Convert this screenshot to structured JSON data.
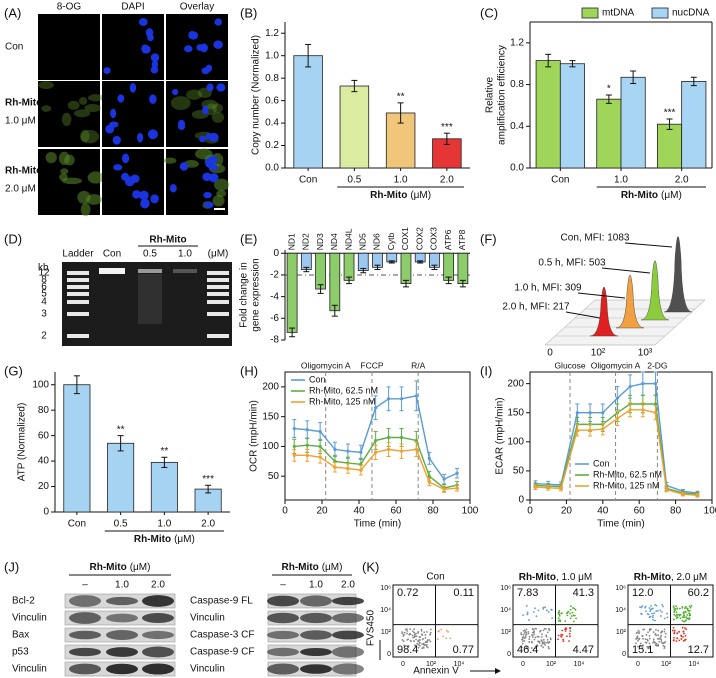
{
  "letters": [
    "(A)",
    "(B)",
    "(C)",
    "(D)",
    "(E)",
    "(F)",
    "(G)",
    "(H)",
    "(I)",
    "(J)",
    "(K)"
  ],
  "panel_a": {
    "columns": [
      "8-OG",
      "DAPI",
      "Overlay"
    ],
    "rows": [
      [
        "Con"
      ],
      [
        "Rh-Mito",
        "1.0 μM"
      ],
      [
        "Rh-Mito",
        "2.0 μM"
      ]
    ]
  },
  "panel_d": {
    "lanes": [
      "Ladder",
      "Con",
      "0.5",
      "1.0"
    ],
    "group": "Rh-Mito",
    "unit": "(μM)",
    "kb_label": "kb",
    "kb": [
      "12",
      "8",
      "6",
      "5",
      "4",
      "3",
      "2"
    ]
  },
  "panel_f": {
    "labels": [
      "Con, MFI: 1083",
      "0.5 h, MFI: 503",
      "1.0 h, MFI: 309",
      "2.0 h, MFI: 217"
    ],
    "axis_labels": [
      "0",
      "10²",
      "10³"
    ]
  },
  "panel_j": [
    {
      "header": "Rh-Mito",
      "unit": "(μM)",
      "lanes": [
        "–",
        "1.0",
        "2.0"
      ],
      "rows": [
        "Bcl-2",
        "Vinculin",
        "Bax",
        "p53",
        "Vinculin"
      ]
    },
    {
      "header": "Rh-Mito",
      "unit": "(μM)",
      "lanes": [
        "–",
        "1.0",
        "2.0"
      ],
      "rows": [
        "Caspase-9 FL",
        "Vinculin",
        "Caspase-3 CF",
        "Caspase-9 CF",
        "Vinculin"
      ]
    }
  ],
  "panel_k": {
    "plots": [
      {
        "title": "Con",
        "quadrants": [
          "0.72",
          "0.11",
          "98.4",
          "0.77"
        ]
      },
      {
        "title": [
          "Rh-Mito",
          ", 1.0 μM"
        ],
        "quadrants": [
          "7.83",
          "41.3",
          "46.4",
          "4.47"
        ]
      },
      {
        "title": [
          "Rh-Mito",
          ", 2.0 μM"
        ],
        "quadrants": [
          "12.0",
          "60.2",
          "15.1",
          "12.7"
        ]
      }
    ],
    "ylabel": "FVS450",
    "xlabel": "Annexin V",
    "yticks": [
      "10⁶",
      "10⁴",
      "10²",
      "0"
    ],
    "xticks": [
      "0",
      "10²",
      "10⁴"
    ]
  },
  "chart_data": [
    {
      "type": "bar",
      "ylabel": "Copy number (Normalized)",
      "categories": [
        "Con",
        "0.5",
        "1.0",
        "2.0"
      ],
      "values": [
        1.0,
        0.73,
        0.49,
        0.26
      ],
      "errors": [
        0.1,
        0.05,
        0.09,
        0.05
      ],
      "colors": [
        "#a7d3f3",
        "#dbeca0",
        "#f0c77a",
        "#e53535"
      ],
      "annotations": [
        null,
        null,
        "**",
        "***"
      ],
      "xlabel": "Rh-Mito",
      "xlabel_unit": "(μM)",
      "ylim": [
        0,
        1.3
      ],
      "yticks": [
        {
          "value": 0,
          "label": "0.0"
        },
        0.2,
        0.4,
        0.6,
        0.8,
        {
          "value": 1,
          "label": "1.0"
        },
        1.2
      ]
    },
    {
      "type": "grouped_bar",
      "ylabel": [
        "Relative",
        "amplification efficiency"
      ],
      "categories": [
        "Con",
        "1.0",
        "2.0"
      ],
      "series": [
        {
          "name": "mtDNA",
          "color": "#9fd65a",
          "values": [
            1.03,
            0.66,
            0.42
          ],
          "errors": [
            0.06,
            0.04,
            0.05
          ],
          "annotations": [
            null,
            "*",
            "***"
          ]
        },
        {
          "name": "nucDNA",
          "color": "#a9d5f5",
          "values": [
            1.0,
            0.87,
            0.83
          ],
          "errors": [
            0.03,
            0.06,
            0.04
          ]
        }
      ],
      "xlabel": "Rh-Mito",
      "xlabel_unit": "(μM)",
      "ylim": [
        0,
        1.4
      ],
      "yticks": [
        {
          "value": 0,
          "label": "0.0"
        },
        0.4,
        0.8,
        1.2
      ],
      "legend": "upper right"
    },
    {
      "type": "bar",
      "ylabel": [
        "Fold change in",
        "gene expression"
      ],
      "categories": [
        "ND1",
        "ND2",
        "ND3",
        "ND4",
        "ND4L",
        "ND5",
        "ND6",
        "Cytb",
        "COX1",
        "COX2",
        "COX3",
        "ATP6",
        "ATP8"
      ],
      "values": [
        -7.3,
        -1.5,
        -3.3,
        -5.3,
        -2.5,
        -1.6,
        -1.3,
        -0.8,
        -2.8,
        -0.8,
        -1.3,
        -2.5,
        -2.8
      ],
      "errors": [
        0.4,
        0.2,
        0.4,
        0.5,
        0.3,
        0.2,
        0.2,
        0.1,
        0.3,
        0.1,
        0.2,
        0.3,
        0.3
      ],
      "colors": [
        "#8ccc6a",
        "#9cc7f0",
        "#8ccc6a",
        "#8ccc6a",
        "#8ccc6a",
        "#9cc7f0",
        "#9cc7f0",
        "#9cc7f0",
        "#8ccc6a",
        "#9cc7f0",
        "#9cc7f0",
        "#8ccc6a",
        "#8ccc6a"
      ],
      "reference_line": -2,
      "ylim": [
        -8,
        0.3
      ],
      "yticks": [
        0,
        -2,
        -4,
        -6,
        -8
      ]
    },
    {
      "type": "bar",
      "ylabel": "ATP (Normalized)",
      "categories": [
        "Con",
        "0.5",
        "1.0",
        "2.0"
      ],
      "values": [
        100,
        54,
        39,
        18
      ],
      "errors": [
        7,
        6,
        4,
        3
      ],
      "colors": [
        "#a7d3f3",
        "#a7d3f3",
        "#a7d3f3",
        "#a7d3f3"
      ],
      "annotations": [
        null,
        "**",
        "**",
        "***"
      ],
      "xlabel": "Rh-Mito",
      "xlabel_unit": "(μM)",
      "ylim": [
        0,
        110
      ],
      "yticks": [
        0,
        20,
        40,
        60,
        80,
        100
      ]
    },
    {
      "type": "line",
      "ylabel": "OCR (mpH/min)",
      "xlabel": "Time (min)",
      "x": [
        5,
        12,
        19,
        27,
        34,
        41,
        49,
        56,
        63,
        71,
        78,
        86,
        93
      ],
      "series": [
        {
          "name": "Con",
          "color": "#5b9bd5",
          "values": [
            130,
            128,
            125,
            95,
            92,
            90,
            165,
            180,
            180,
            185,
            80,
            45,
            55
          ],
          "errors": [
            15,
            15,
            15,
            12,
            12,
            12,
            20,
            20,
            20,
            25,
            10,
            8,
            8
          ]
        },
        {
          "name": "Rh-Mito, 62.5 nM",
          "color": "#5fae3f",
          "values": [
            100,
            102,
            100,
            75,
            72,
            70,
            110,
            115,
            115,
            110,
            50,
            30,
            35
          ],
          "errors": [
            12,
            12,
            12,
            10,
            10,
            10,
            15,
            15,
            15,
            15,
            8,
            6,
            6
          ]
        },
        {
          "name": "Rh-Mito, 125 nM",
          "color": "#f0a030",
          "values": [
            85,
            85,
            82,
            65,
            63,
            60,
            90,
            95,
            92,
            95,
            40,
            28,
            30
          ],
          "errors": [
            10,
            10,
            10,
            8,
            8,
            8,
            12,
            12,
            12,
            12,
            6,
            5,
            5
          ]
        }
      ],
      "events": [
        {
          "x": 22,
          "label": "Oligomycin A"
        },
        {
          "x": 47,
          "label": "FCCP"
        },
        {
          "x": 72,
          "label": "R/A"
        }
      ],
      "xlim": [
        0,
        100
      ],
      "xticks": [
        0,
        20,
        40,
        60,
        80,
        100
      ],
      "ylim": [
        10,
        225
      ],
      "yticks": [
        50,
        100,
        150,
        200
      ],
      "legend": "upper left"
    },
    {
      "type": "line",
      "ylabel": "ECAR (mpH/min)",
      "xlabel": "Time (min)",
      "x": [
        3,
        10,
        17,
        26,
        33,
        40,
        48,
        55,
        62,
        69,
        75,
        84,
        92
      ],
      "series": [
        {
          "name": "Con",
          "color": "#5b9bd5",
          "values": [
            28,
            27,
            26,
            150,
            150,
            150,
            175,
            195,
            200,
            200,
            25,
            15,
            12
          ],
          "errors": [
            5,
            5,
            5,
            15,
            15,
            15,
            20,
            20,
            20,
            20,
            5,
            3,
            3
          ]
        },
        {
          "name": "Rh-Mito, 62.5 nM",
          "color": "#5fae3f",
          "values": [
            25,
            24,
            23,
            130,
            130,
            130,
            150,
            165,
            165,
            165,
            20,
            12,
            10
          ],
          "errors": [
            4,
            4,
            4,
            12,
            12,
            12,
            15,
            15,
            15,
            15,
            4,
            3,
            3
          ]
        },
        {
          "name": "Rh-Mito, 125 nM",
          "color": "#f0a030",
          "values": [
            22,
            21,
            20,
            120,
            120,
            122,
            140,
            155,
            155,
            150,
            18,
            10,
            8
          ],
          "errors": [
            4,
            4,
            4,
            10,
            10,
            10,
            12,
            12,
            12,
            12,
            4,
            3,
            3
          ]
        }
      ],
      "events": [
        {
          "x": 22,
          "label": "Glucose"
        },
        {
          "x": 47,
          "label": "Oligomycin A"
        },
        {
          "x": 70,
          "label": "2-DG"
        }
      ],
      "xlim": [
        0,
        100
      ],
      "xticks": [
        0,
        20,
        40,
        60,
        80,
        100
      ],
      "ylim": [
        0,
        220
      ],
      "yticks": [
        0,
        50,
        100,
        150,
        200
      ],
      "legend": "lower center"
    }
  ]
}
